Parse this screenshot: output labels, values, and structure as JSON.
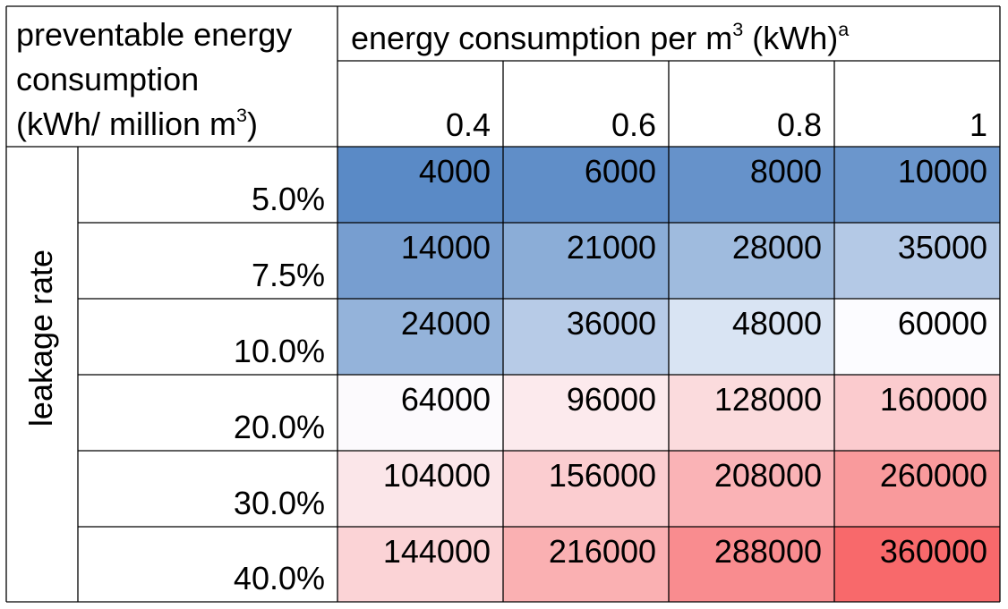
{
  "corner_label": {
    "line1": "preventable energy",
    "line2": "consumption",
    "line3_pre": "(kWh/ million m",
    "line3_sup": "3",
    "line3_post": ")"
  },
  "column_header": {
    "pre": "energy consumption per m",
    "sup": "3",
    "mid": " (kWh)",
    "note": "a"
  },
  "row_axis_label": "leakage rate",
  "chart_data": {
    "type": "heatmap",
    "columns": [
      "0.4",
      "0.6",
      "0.8",
      "1"
    ],
    "rows": [
      "5.0%",
      "7.5%",
      "10.0%",
      "20.0%",
      "30.0%",
      "40.0%"
    ],
    "values": [
      [
        "4000",
        "6000",
        "8000",
        "10000"
      ],
      [
        "14000",
        "21000",
        "28000",
        "35000"
      ],
      [
        "24000",
        "36000",
        "48000",
        "60000"
      ],
      [
        "64000",
        "96000",
        "128000",
        "160000"
      ],
      [
        "104000",
        "156000",
        "208000",
        "260000"
      ],
      [
        "144000",
        "216000",
        "288000",
        "360000"
      ]
    ],
    "color_scale": {
      "low": "#5a8ac6",
      "mid": "#fcfcff",
      "high": "#f8696b",
      "midpoint": 60000
    }
  }
}
